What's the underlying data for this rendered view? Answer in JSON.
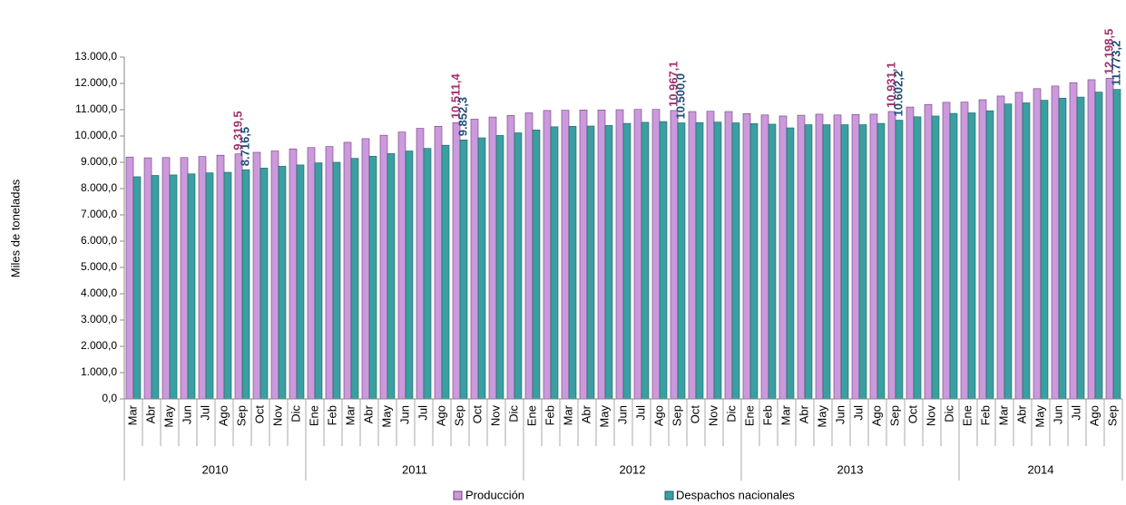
{
  "chart_data": {
    "type": "bar",
    "y_label": "Miles de toneladas",
    "categories": [
      "Mar",
      "Abr",
      "May",
      "Jun",
      "Jul",
      "Ago",
      "Sep",
      "Oct",
      "Nov",
      "Dic",
      "Ene",
      "Feb",
      "Mar",
      "Abr",
      "May",
      "Jun",
      "Jul",
      "Ago",
      "Sep",
      "Oct",
      "Nov",
      "Dic",
      "Ene",
      "Feb",
      "Mar",
      "Abr",
      "May",
      "Jun",
      "Jul",
      "Ago",
      "Sep",
      "Oct",
      "Nov",
      "Dic",
      "Ene",
      "Feb",
      "Mar",
      "Abr",
      "May",
      "Jun",
      "Jul",
      "Ago",
      "Sep",
      "Oct",
      "Nov",
      "Dic",
      "Ene",
      "Feb",
      "Mar",
      "Abr",
      "May",
      "Jun",
      "Jul",
      "Ago",
      "Sep"
    ],
    "category_years": [
      "2010",
      "2010",
      "2010",
      "2010",
      "2010",
      "2010",
      "2010",
      "2010",
      "2010",
      "2010",
      "2011",
      "2011",
      "2011",
      "2011",
      "2011",
      "2011",
      "2011",
      "2011",
      "2011",
      "2011",
      "2011",
      "2011",
      "2012",
      "2012",
      "2012",
      "2012",
      "2012",
      "2012",
      "2012",
      "2012",
      "2012",
      "2012",
      "2012",
      "2012",
      "2013",
      "2013",
      "2013",
      "2013",
      "2013",
      "2013",
      "2013",
      "2013",
      "2013",
      "2013",
      "2013",
      "2013",
      "2014",
      "2014",
      "2014",
      "2014",
      "2014",
      "2014",
      "2014",
      "2014",
      "2014"
    ],
    "series": [
      {
        "name": "Producción",
        "color": "#cc99dd",
        "label_color": "#a0326e",
        "values": [
          9200,
          9170,
          9180,
          9180,
          9220,
          9270,
          9319.5,
          9380,
          9430,
          9510,
          9560,
          9600,
          9760,
          9900,
          10030,
          10150,
          10290,
          10370,
          10511.4,
          10640,
          10720,
          10780,
          10880,
          10970,
          10980,
          10990,
          10990,
          11000,
          11010,
          11010,
          10967.1,
          10930,
          10940,
          10930,
          10850,
          10800,
          10760,
          10790,
          10830,
          10800,
          10820,
          10830,
          10931.1,
          11100,
          11200,
          11280,
          11290,
          11380,
          11520,
          11660,
          11800,
          11900,
          12030,
          12140,
          12198.5
        ],
        "value_labels": [
          null,
          null,
          null,
          null,
          null,
          null,
          "9.319,5",
          null,
          null,
          null,
          null,
          null,
          null,
          null,
          null,
          null,
          null,
          null,
          "10.511,4",
          null,
          null,
          null,
          null,
          null,
          null,
          null,
          null,
          null,
          null,
          null,
          "10.967,1",
          null,
          null,
          null,
          null,
          null,
          null,
          null,
          null,
          null,
          null,
          null,
          "10.931,1",
          null,
          null,
          null,
          null,
          null,
          null,
          null,
          null,
          null,
          null,
          null,
          "12.198,5"
        ]
      },
      {
        "name": "Despachos nacionales",
        "color": "#3a9fa0",
        "label_color": "#1f4e79",
        "values": [
          8450,
          8500,
          8520,
          8560,
          8600,
          8620,
          8716.5,
          8780,
          8850,
          8900,
          8980,
          9000,
          9150,
          9230,
          9330,
          9430,
          9530,
          9650,
          9852.3,
          9930,
          10020,
          10120,
          10230,
          10350,
          10370,
          10380,
          10400,
          10480,
          10520,
          10550,
          10500.0,
          10510,
          10530,
          10500,
          10470,
          10450,
          10310,
          10430,
          10430,
          10430,
          10430,
          10480,
          10602.2,
          10730,
          10760,
          10860,
          10880,
          10960,
          11220,
          11260,
          11360,
          11440,
          11480,
          11670,
          11773.2
        ],
        "value_labels": [
          null,
          null,
          null,
          null,
          null,
          null,
          "8.716,5",
          null,
          null,
          null,
          null,
          null,
          null,
          null,
          null,
          null,
          null,
          null,
          "9.852,3",
          null,
          null,
          null,
          null,
          null,
          null,
          null,
          null,
          null,
          null,
          null,
          "10.500,0",
          null,
          null,
          null,
          null,
          null,
          null,
          null,
          null,
          null,
          null,
          null,
          "10.602,2",
          null,
          null,
          null,
          null,
          null,
          null,
          null,
          null,
          null,
          null,
          null,
          "11.773,2"
        ]
      }
    ],
    "ylim": [
      0,
      13000
    ],
    "yticks": [
      {
        "value": 0,
        "label": "0,0"
      },
      {
        "value": 1000,
        "label": "1.000,0"
      },
      {
        "value": 2000,
        "label": "2.000,0"
      },
      {
        "value": 3000,
        "label": "3.000,0"
      },
      {
        "value": 4000,
        "label": "4.000,0"
      },
      {
        "value": 5000,
        "label": "5.000,0"
      },
      {
        "value": 6000,
        "label": "6.000,0"
      },
      {
        "value": 7000,
        "label": "7.000,0"
      },
      {
        "value": 8000,
        "label": "8.000,0"
      },
      {
        "value": 9000,
        "label": "9.000,0"
      },
      {
        "value": 10000,
        "label": "10.000,0"
      },
      {
        "value": 11000,
        "label": "11.000,0"
      },
      {
        "value": 12000,
        "label": "12.000,0"
      },
      {
        "value": 13000,
        "label": "13.000,0"
      }
    ],
    "grid": false
  }
}
